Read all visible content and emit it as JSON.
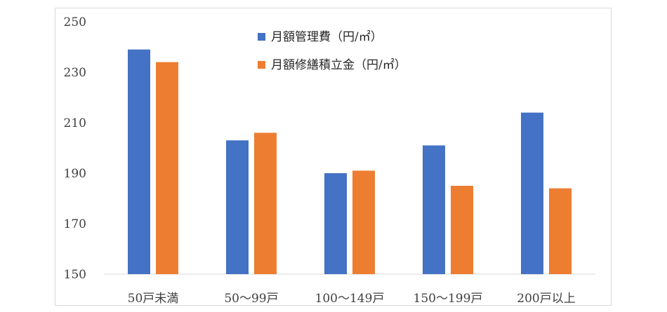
{
  "chart_data": {
    "type": "bar",
    "categories": [
      "50戸未満",
      "50～99戸",
      "100～149戸",
      "150～199戸",
      "200戸以上"
    ],
    "series": [
      {
        "name": "月額管理費（円/㎡）",
        "color": "#4472C4",
        "values": [
          239,
          203,
          190,
          201,
          214
        ]
      },
      {
        "name": "月額修繕積立金（円/㎡）",
        "color": "#ED7D31",
        "values": [
          234,
          206,
          191,
          185,
          184
        ]
      }
    ],
    "ylim": [
      150,
      250
    ],
    "yticks": [
      150,
      170,
      190,
      210,
      230,
      250
    ],
    "grid": false,
    "legend_position": "top-center"
  }
}
